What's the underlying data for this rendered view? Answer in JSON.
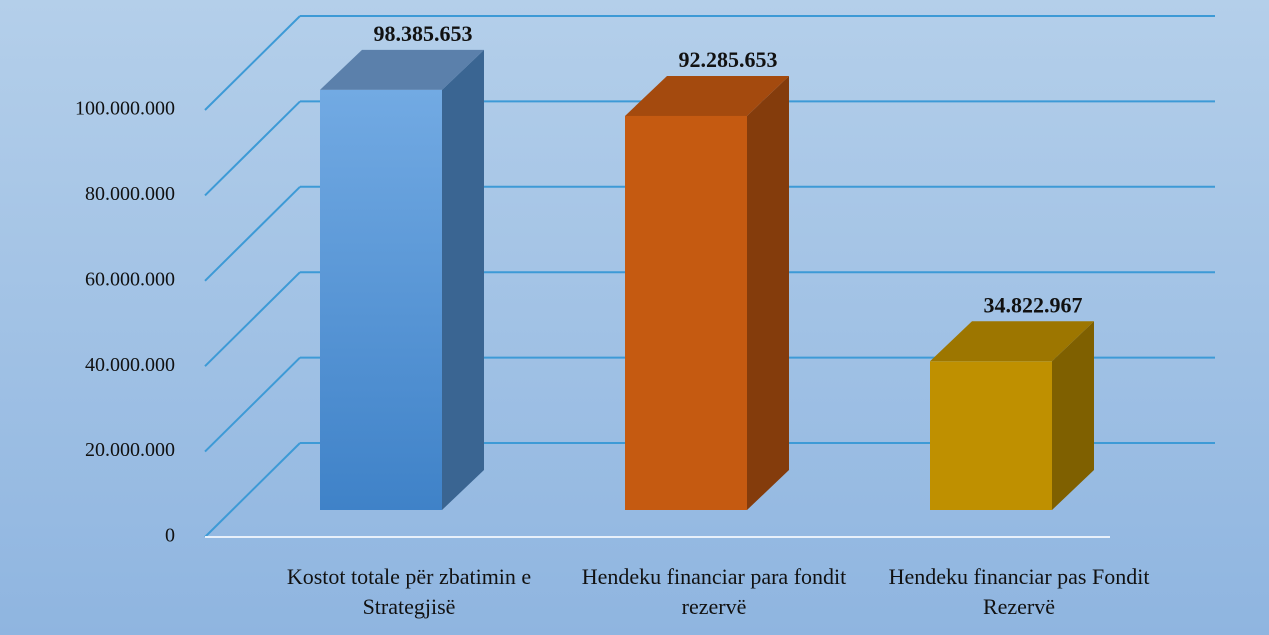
{
  "chart_data": {
    "type": "bar3d",
    "categories": [
      "Kostot totale për zbatimin e Strategjisë",
      "Hendeku financiar para fondit rezervë",
      "Hendeku financiar pas Fondit Rezervë"
    ],
    "values": [
      98385653,
      92285653,
      34822967
    ],
    "value_labels": [
      "98.385.653",
      "92.285.653",
      "34.822.967"
    ],
    "colors": [
      "#4f92d6",
      "#c55a11",
      "#bf9000"
    ],
    "ylim": [
      0,
      100000000
    ],
    "yticks": [
      0,
      {
        "value": 20000000,
        "label": "20.000.000"
      },
      {
        "value": 40000000,
        "label": "40.000.000"
      },
      {
        "value": 60000000,
        "label": "60.000.000"
      },
      {
        "value": 80000000,
        "label": "80.000.000"
      },
      {
        "value": 100000000,
        "label": "100.000.000"
      }
    ],
    "grid": true
  }
}
